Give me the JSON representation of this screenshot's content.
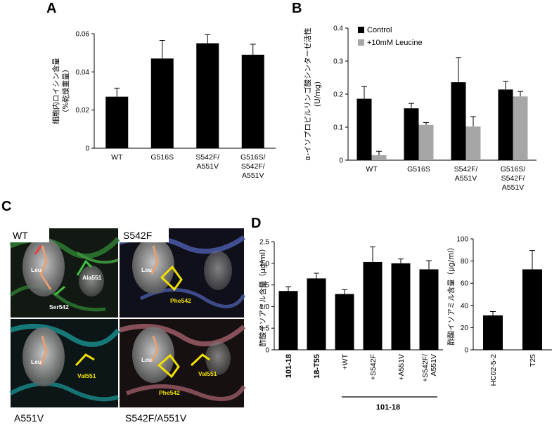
{
  "colors": {
    "black": "#000000",
    "gray": "#a6a6a6",
    "wt_ribbon": "#2e7d32",
    "s542f_ribbon": "#4a5aa8",
    "a551v_ribbon": "#1a8a8a",
    "double_ribbon": "#9a5a66",
    "yellow_label": "#f0e000"
  },
  "panels": {
    "a": "A",
    "b": "B",
    "c": "C",
    "d": "D"
  },
  "structure": {
    "quad_labels": {
      "wt": "WT",
      "s542f": "S542F",
      "a551v": "A551V",
      "double": "S542F/A551V"
    },
    "inner": {
      "leu": "Leu",
      "ala551": "Ala551",
      "ser542": "Ser542",
      "phe542": "Phe542",
      "val551": "Val551"
    }
  },
  "chart_data": [
    {
      "panel": "A",
      "type": "bar",
      "ylabel": "細胞内ロイシン含量\n（%乾燥重量）",
      "ylim": [
        0,
        0.06
      ],
      "yticks": [
        "0",
        "0.02",
        "0.04",
        "0.06"
      ],
      "categories": [
        [
          "WT"
        ],
        [
          "G516S"
        ],
        [
          "S542F/",
          "A551V"
        ],
        [
          "G516S/",
          "S542F/",
          "A551V"
        ]
      ],
      "series": [
        {
          "values": [
            0.027,
            0.047,
            0.055,
            0.049
          ],
          "errors": [
            0.0045,
            0.0095,
            0.0045,
            0.0055
          ]
        }
      ]
    },
    {
      "panel": "B",
      "type": "bar",
      "ylabel": "α-イソプロピルリンゴ酸シンターゼ活性\n(U/mg)",
      "ylim": [
        0,
        0.4
      ],
      "yticks": [
        "0",
        "0.1",
        "0.2",
        "0.3",
        "0.4"
      ],
      "categories": [
        [
          "WT"
        ],
        [
          "G516S"
        ],
        [
          "S542F/",
          "A551V"
        ],
        [
          "G516S/",
          "S542F/",
          "A551V"
        ]
      ],
      "series": [
        {
          "name": "Control",
          "values": [
            0.186,
            0.157,
            0.236,
            0.214
          ],
          "errors": [
            0.037,
            0.015,
            0.075,
            0.025
          ]
        },
        {
          "name": "+10mM Leucine",
          "values": [
            0.015,
            0.107,
            0.102,
            0.193
          ],
          "errors": [
            0.012,
            0.007,
            0.03,
            0.015
          ]
        }
      ],
      "legend": "top-left"
    },
    {
      "panel": "D-left",
      "type": "bar",
      "ylabel": "酢酸イソアミル含量（μg/ml）",
      "ylim": [
        0,
        2.5
      ],
      "yticks": [
        "0",
        "0.5",
        "1.0",
        "1.5",
        "2.0",
        "2.5"
      ],
      "categories": [
        "101-18",
        "18-T55",
        "+WT",
        "+S542F",
        "+A551V",
        "+S542F/\nA551V"
      ],
      "bold_categories": [
        0,
        1
      ],
      "group_label": "101-18",
      "series": [
        {
          "values": [
            1.36,
            1.65,
            1.29,
            2.03,
            2.0,
            1.86
          ],
          "errors": [
            0.1,
            0.12,
            0.1,
            0.35,
            0.1,
            0.2
          ]
        }
      ]
    },
    {
      "panel": "D-right",
      "type": "bar",
      "ylabel": "酢酸イソアミル含量（μg/ml）",
      "ylim": [
        0,
        100
      ],
      "yticks": [
        "0",
        "20",
        "40",
        "60",
        "80",
        "100"
      ],
      "categories": [
        "HC02-5-2",
        "T25"
      ],
      "series": [
        {
          "values": [
            31,
            72.5
          ],
          "errors": [
            3.5,
            17
          ]
        }
      ]
    }
  ]
}
